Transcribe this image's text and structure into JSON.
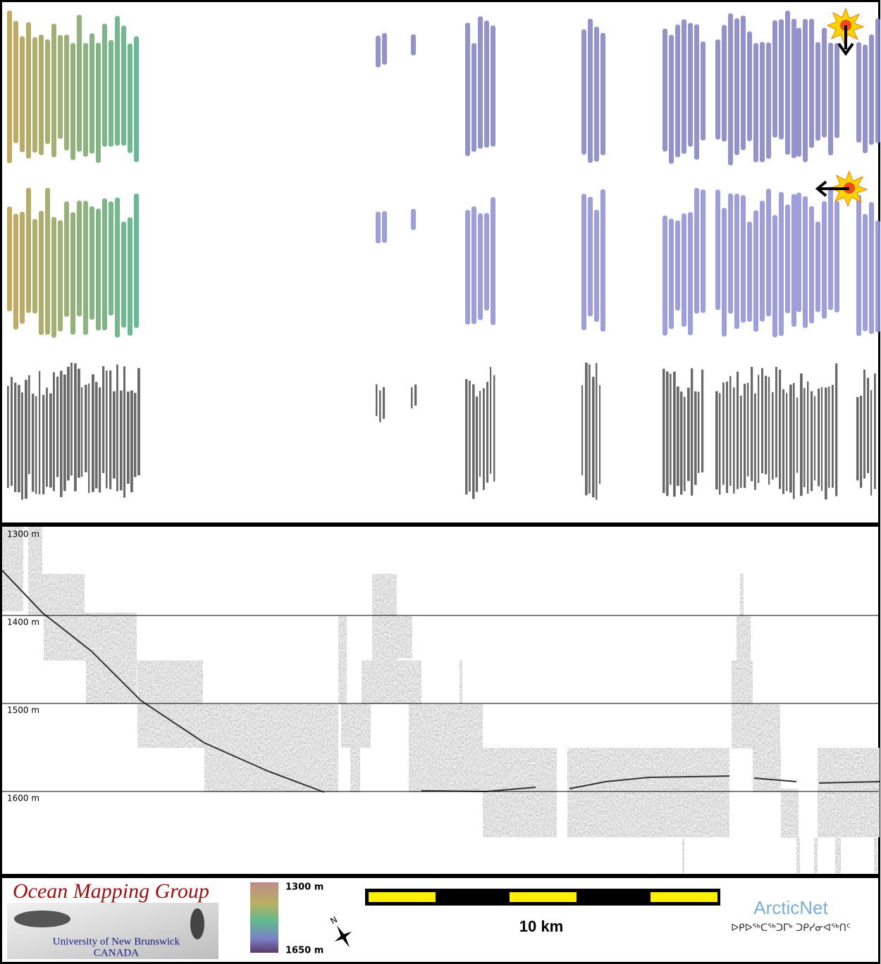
{
  "profile": {
    "depth_labels": [
      "1300 m",
      "1400 m",
      "1500 m",
      "1600 m"
    ]
  },
  "footer": {
    "logo": {
      "title": "Ocean Mapping Group",
      "university": "University of New Brunswick",
      "country": "CANADA"
    },
    "colorbar": {
      "top_label": "1300 m",
      "bottom_label": "1650 m"
    },
    "north_label": "N",
    "scale_label": "10 km",
    "partner": {
      "name": "ArcticNet",
      "syllabics": "ᐅᑭᐅᖅᑕᖅᑐᒥᒃ ᑐᑭᓯᓂᐊᖅᑎᑦ"
    }
  }
}
